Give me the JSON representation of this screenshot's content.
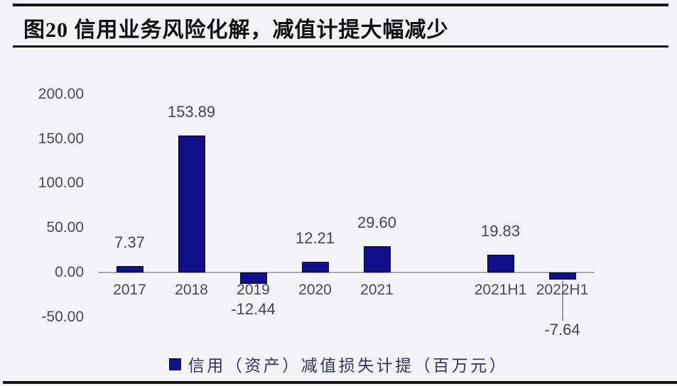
{
  "page": {
    "title": "图20 信用业务风险化解，减值计提大幅减少"
  },
  "chart_data": {
    "type": "bar",
    "title": "图20 信用业务风险化解，减值计提大幅减少",
    "categories": [
      "2017",
      "2018",
      "2019",
      "2020",
      "2021",
      "2021H1",
      "2022H1"
    ],
    "values": [
      7.37,
      153.89,
      -12.44,
      12.21,
      29.6,
      19.83,
      -7.64
    ],
    "value_labels": [
      "7.37",
      "153.89",
      "-12.44",
      "12.21",
      "29.60",
      "19.83",
      "-7.64"
    ],
    "slots": [
      0,
      1,
      2,
      3,
      4,
      6,
      7
    ],
    "y_ticks": [
      "200.00",
      "150.00",
      "100.00",
      "50.00",
      "0.00",
      "-50.00"
    ],
    "y_tick_values": [
      200,
      150,
      100,
      50,
      0,
      -50
    ],
    "ylim": [
      -50,
      200
    ],
    "xlabel": "",
    "ylabel": "",
    "grid": false,
    "legend": "信用（资产）减值损失计提（百万元）",
    "legend_position": "bottom",
    "leader_line_category": "2022H1",
    "bar_color": "#10108c",
    "bar_border_color": "#03032f",
    "axis_color": "#ababb0",
    "label_color": "#454549",
    "legend_text_color": "#32325e"
  }
}
